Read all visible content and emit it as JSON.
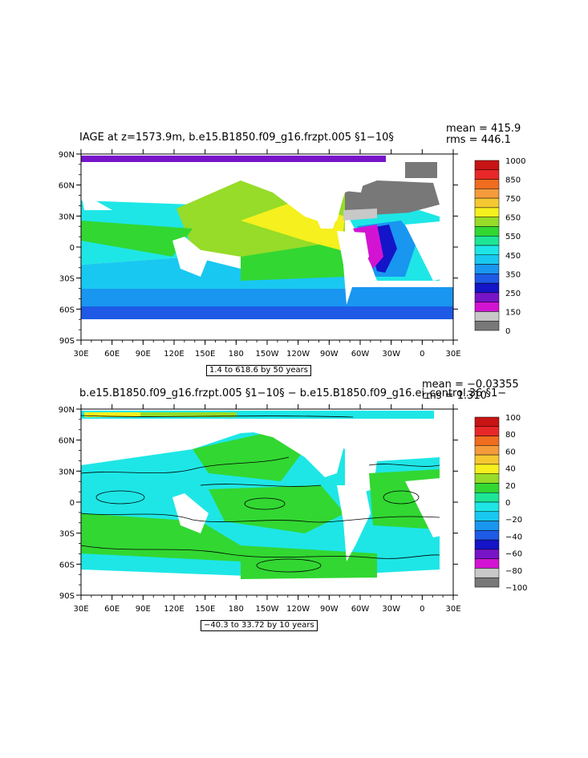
{
  "panels": [
    {
      "id": "age",
      "title": "IAGE at z=1573.9m, b.e15.B1850.f09_g16.frzpt.005 §1−10§",
      "stats": {
        "mean": "mean = 415.9",
        "rms": "rms = 446.1"
      },
      "range_text": "1.4 to 618.6 by 50 years",
      "colorbar": {
        "labels": [
          "1000",
          "850",
          "750",
          "650",
          "550",
          "450",
          "350",
          "250",
          "150",
          "0"
        ],
        "colors": [
          "#c81414",
          "#e82828",
          "#f06c1e",
          "#f59b3c",
          "#f5c832",
          "#f5f01e",
          "#96dc28",
          "#32d732",
          "#1ee696",
          "#1ee6e6",
          "#19c8f0",
          "#1996f0",
          "#1e5ae6",
          "#1414c8",
          "#7814c8",
          "#d214d2",
          "#c8c8c8",
          "#787878"
        ]
      },
      "x_ticks": [
        "30E",
        "60E",
        "90E",
        "120E",
        "150E",
        "180",
        "150W",
        "120W",
        "90W",
        "60W",
        "30W",
        "0",
        "30E"
      ],
      "y_ticks": [
        "90N",
        "60N",
        "30N",
        "0",
        "30S",
        "60S",
        "90S"
      ]
    },
    {
      "id": "diff",
      "title": "b.e15.B1850.f09_g16.frzpt.005 §1−10§ − b.e15.B1850.f09_g16.ei_control.36 §1−",
      "stats": {
        "mean": "mean = −0.03355",
        "rms": "rms = 1.310"
      },
      "range_text": "−40.3 to 33.72 by 10 years",
      "colorbar": {
        "labels": [
          "100",
          "80",
          "60",
          "40",
          "20",
          "0",
          "−20",
          "−40",
          "−60",
          "−80",
          "−100"
        ],
        "colors": [
          "#c81414",
          "#e82828",
          "#f06c1e",
          "#f59b3c",
          "#f5c832",
          "#f5f01e",
          "#96dc28",
          "#32d732",
          "#1ee696",
          "#1ee6e6",
          "#19c8f0",
          "#1996f0",
          "#1e5ae6",
          "#1414c8",
          "#7814c8",
          "#d214d2",
          "#c8c8c8",
          "#787878"
        ]
      },
      "x_ticks": [
        "30E",
        "60E",
        "90E",
        "120E",
        "150E",
        "180",
        "150W",
        "120W",
        "90W",
        "60W",
        "30W",
        "0",
        "30E"
      ],
      "y_ticks": [
        "90N",
        "60N",
        "30N",
        "0",
        "30S",
        "60S",
        "90S"
      ]
    }
  ]
}
